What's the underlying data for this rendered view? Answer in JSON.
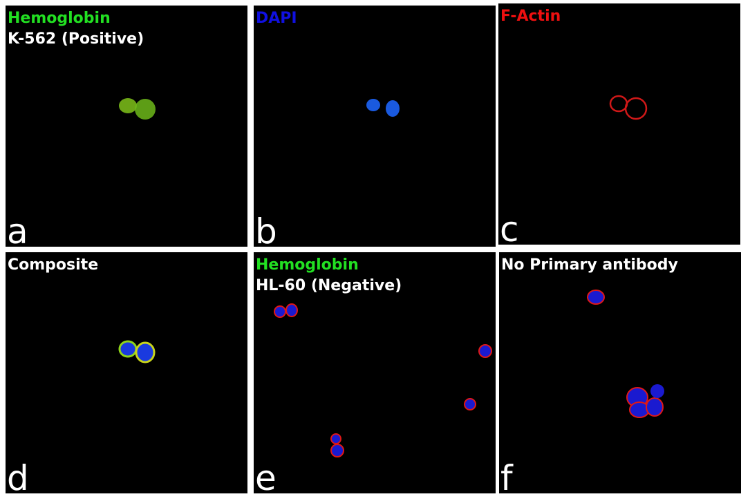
{
  "panels": [
    {
      "title": "Hemoglobin",
      "subtitle": "K-562 (Positive)",
      "letter": "a"
    },
    {
      "title": "DAPI",
      "letter": "b"
    },
    {
      "title": "F-Actin",
      "letter": "c"
    },
    {
      "title": "Composite",
      "letter": "d"
    },
    {
      "title": "Hemoglobin",
      "subtitle": "HL-60 (Negative)",
      "letter": "e"
    },
    {
      "title": "No Primary antibody",
      "letter": "f"
    }
  ]
}
